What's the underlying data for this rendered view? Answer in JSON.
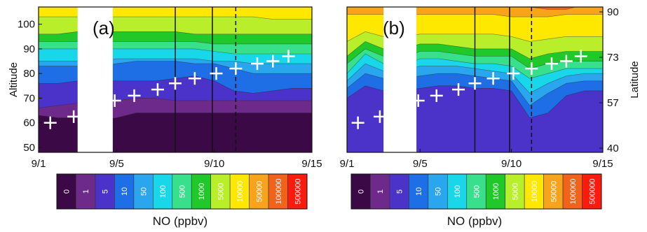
{
  "chart_data": [
    {
      "type": "heatmap",
      "panel_label": "(a)",
      "x_ticks": [
        "9/1",
        "9/5",
        "9/10",
        "9/15"
      ],
      "y_left_label": "Altitude",
      "y_left_ticks": [
        "50",
        "60",
        "70",
        "80",
        "90",
        "100"
      ],
      "x_range_days": [
        1,
        15
      ],
      "y_range": [
        48,
        107
      ],
      "contour_levels": [
        0,
        1,
        5,
        10,
        50,
        100,
        500,
        1000,
        5000,
        10000,
        50000,
        100000,
        500000
      ],
      "contour_boundaries": [
        {
          "level": "0-1",
          "y": [
            63,
            62,
            62,
            61,
            62,
            64,
            64,
            64,
            64,
            64,
            64,
            64,
            64,
            64,
            64
          ]
        },
        {
          "level": "1-5",
          "y": [
            66,
            67,
            68,
            69,
            69,
            70,
            70,
            69,
            69,
            69,
            69,
            69,
            69,
            69,
            69
          ]
        },
        {
          "level": "5-10",
          "y": [
            76,
            76,
            77,
            77,
            77,
            77,
            77,
            78,
            79,
            77,
            73,
            72,
            73,
            74,
            74
          ]
        },
        {
          "level": "10-50",
          "y": [
            83,
            83,
            83,
            83,
            84,
            85,
            85,
            85,
            84,
            84,
            82,
            80,
            80,
            80,
            80
          ]
        },
        {
          "level": "50-100",
          "y": [
            85,
            85,
            85,
            85,
            86,
            86,
            86,
            86,
            86,
            85,
            85,
            84,
            84,
            84,
            84
          ]
        },
        {
          "level": "100-500",
          "y": [
            90,
            90,
            90,
            90,
            90,
            90,
            90,
            90,
            90,
            89,
            88,
            88,
            88,
            88,
            88
          ]
        },
        {
          "level": "500-1000",
          "y": [
            93,
            93,
            93,
            93,
            93,
            93,
            93,
            93,
            93,
            92,
            92,
            92,
            92,
            92,
            92
          ]
        },
        {
          "level": "1000-5000",
          "y": [
            96,
            96,
            97,
            97,
            97,
            97,
            97,
            97,
            96,
            96,
            96,
            96,
            96,
            96,
            96
          ]
        },
        {
          "level": "5000-10000",
          "y": [
            103,
            103,
            103,
            103,
            103,
            103,
            103,
            103,
            103,
            103,
            103,
            103,
            102,
            102,
            102
          ]
        }
      ],
      "vertical_lines": [
        {
          "day": 8.0,
          "style": "solid"
        },
        {
          "day": 9.9,
          "style": "solid"
        },
        {
          "day": 11.1,
          "style": "dashed"
        }
      ],
      "blank_band_days": [
        3,
        4.8
      ],
      "markers": [
        {
          "day": 1.6,
          "y": 60
        },
        {
          "day": 2.8,
          "y": 62.5
        },
        {
          "day": 4.9,
          "y": 69
        },
        {
          "day": 5.9,
          "y": 71
        },
        {
          "day": 7.1,
          "y": 73.5
        },
        {
          "day": 8.0,
          "y": 76
        },
        {
          "day": 9.0,
          "y": 78
        },
        {
          "day": 10.1,
          "y": 80
        },
        {
          "day": 11.1,
          "y": 82
        },
        {
          "day": 12.2,
          "y": 84
        },
        {
          "day": 13.0,
          "y": 85
        },
        {
          "day": 13.8,
          "y": 87
        }
      ]
    },
    {
      "type": "heatmap",
      "panel_label": "(b)",
      "x_ticks": [
        "9/1",
        "9/5",
        "9/10",
        "9/15"
      ],
      "y_right_label": "Latitude",
      "y_right_ticks": [
        "40",
        "57",
        "73",
        "90"
      ],
      "x_range_days": [
        1,
        15
      ],
      "y_range": [
        48,
        107
      ],
      "contour_levels": [
        0,
        1,
        5,
        10,
        50,
        100,
        500,
        1000,
        5000,
        10000,
        50000,
        100000,
        500000
      ],
      "contour_boundaries": [
        {
          "level": "5-10",
          "y": [
            70,
            75,
            73,
            73,
            74,
            75,
            75,
            74,
            74,
            73,
            62,
            64,
            71,
            73,
            73
          ]
        },
        {
          "level": "10-50",
          "y": [
            74,
            80,
            78,
            78,
            79,
            80,
            80,
            79,
            78,
            77,
            67,
            72,
            76,
            77,
            77
          ]
        },
        {
          "level": "50-100",
          "y": [
            77,
            84,
            81,
            81,
            83,
            83,
            83,
            82,
            81,
            80,
            72,
            76,
            79,
            80,
            80
          ]
        },
        {
          "level": "100-500",
          "y": [
            80,
            88,
            84,
            83,
            86,
            86,
            85,
            84,
            84,
            83,
            78,
            80,
            82,
            82,
            82
          ]
        },
        {
          "level": "500-1000",
          "y": [
            84,
            90,
            87,
            86,
            89,
            89,
            88,
            87,
            87,
            87,
            82,
            84,
            85,
            85,
            85
          ]
        },
        {
          "level": "1000-5000",
          "y": [
            87,
            93,
            90,
            90,
            92,
            92,
            91,
            90,
            90,
            90,
            86,
            88,
            89,
            89,
            89
          ]
        },
        {
          "level": "5000-10000",
          "y": [
            93,
            97,
            95,
            95,
            96,
            96,
            96,
            96,
            96,
            95,
            93,
            94,
            95,
            95,
            95
          ]
        },
        {
          "level": "10000-50000",
          "y": [
            104,
            104,
            104,
            104,
            104,
            104,
            104,
            104,
            104,
            103,
            103,
            103,
            104,
            104,
            104
          ]
        },
        {
          "level": "50000-100000",
          "y": [
            108,
            108,
            108,
            108,
            108,
            108,
            108,
            108,
            108,
            108,
            107,
            106,
            106,
            108,
            108
          ]
        }
      ],
      "vertical_lines": [
        {
          "day": 8.0,
          "style": "solid"
        },
        {
          "day": 9.9,
          "style": "solid"
        },
        {
          "day": 11.1,
          "style": "dashed"
        }
      ],
      "blank_band_days": [
        3,
        4.8
      ],
      "markers": [
        {
          "day": 1.6,
          "y": 60
        },
        {
          "day": 2.8,
          "y": 62.5
        },
        {
          "day": 4.9,
          "y": 69
        },
        {
          "day": 5.9,
          "y": 71
        },
        {
          "day": 7.1,
          "y": 73.5
        },
        {
          "day": 8.0,
          "y": 76
        },
        {
          "day": 9.0,
          "y": 78
        },
        {
          "day": 10.1,
          "y": 80
        },
        {
          "day": 11.1,
          "y": 82
        },
        {
          "day": 12.2,
          "y": 84
        },
        {
          "day": 13.0,
          "y": 85
        },
        {
          "day": 13.8,
          "y": 87
        }
      ]
    }
  ],
  "colorbar": {
    "labels": [
      "0",
      "1",
      "5",
      "10",
      "50",
      "100",
      "500",
      "1000",
      "5000",
      "10000",
      "50000",
      "100000",
      "500000"
    ],
    "colors": [
      "#3b0a46",
      "#6d2a8a",
      "#4b33c9",
      "#1e6fe6",
      "#2aa6ee",
      "#18d7e8",
      "#39e08c",
      "#20c82a",
      "#b8ef2a",
      "#ffe800",
      "#f8a31c",
      "#f2621a",
      "#ff1a0d"
    ],
    "title": "NO (ppbv)"
  },
  "plot_colors": {
    "bands": [
      "#3b0a46",
      "#6d2a8a",
      "#4b33c9",
      "#1e6fe6",
      "#2aa6ee",
      "#18d7e8",
      "#39e08c",
      "#20c82a",
      "#b8ef2a",
      "#ffe800",
      "#f8a31c",
      "#f2621a",
      "#ff1a0d"
    ],
    "marker": "#ffffff",
    "line": "#111111"
  }
}
